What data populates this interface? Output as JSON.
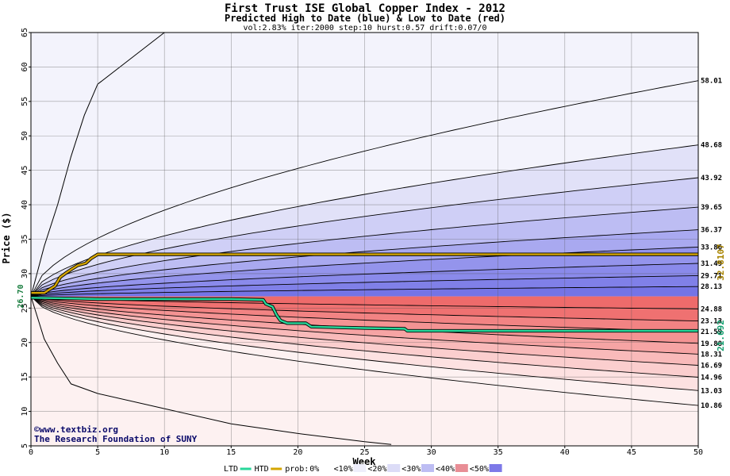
{
  "chart_data": {
    "type": "area",
    "title": "First Trust ISE Global Copper Index - 2012",
    "subtitle": "Predicted High to Date (blue) &  Low to Date (red)",
    "params": "vol:2.83% iter:2000 step:10 hurst:0.57 drift:0.07/0",
    "xlabel": "Week",
    "ylabel": "Price ($)",
    "xlim": [
      0,
      50
    ],
    "ylim": [
      5,
      65
    ],
    "xticks": [
      0,
      5,
      10,
      15,
      20,
      25,
      30,
      35,
      40,
      45,
      50
    ],
    "yticks": [
      5,
      10,
      15,
      20,
      25,
      30,
      35,
      40,
      45,
      50,
      55,
      60,
      65
    ],
    "grid": true,
    "start_price": 26.7,
    "start_label": "26.70",
    "high_band_levels": [
      28.13,
      29.71,
      31.49,
      33.86,
      36.37,
      39.65,
      43.92,
      48.68,
      58.01
    ],
    "low_band_levels": [
      24.88,
      23.13,
      21.59,
      19.88,
      18.31,
      16.69,
      14.96,
      13.03,
      10.86
    ],
    "right_labels": [
      "58.01",
      "48.68",
      "43.92",
      "39.65",
      "36.37",
      "33.86",
      "31.49",
      "29.71",
      "28.13",
      "24.88",
      "23.13",
      "21.59",
      "19.88",
      "18.31",
      "16.69",
      "14.96",
      "13.03",
      "10.86"
    ],
    "outer_high_curve": [
      [
        0,
        26.7
      ],
      [
        1,
        34
      ],
      [
        2,
        40
      ],
      [
        3,
        47
      ],
      [
        4,
        53
      ],
      [
        5,
        57.5
      ],
      [
        7,
        60.5
      ],
      [
        9,
        63.5
      ],
      [
        10,
        65
      ]
    ],
    "outer_low_curve": [
      [
        0,
        26.7
      ],
      [
        1,
        20.5
      ],
      [
        2,
        17
      ],
      [
        3,
        14
      ],
      [
        5,
        12.6
      ],
      [
        10,
        10.4
      ],
      [
        15,
        8.2
      ],
      [
        20,
        6.8
      ],
      [
        25,
        5.6
      ],
      [
        27,
        5.2
      ]
    ],
    "htd_series": {
      "name": "HTD",
      "color": "#d4a500",
      "points": [
        [
          0,
          27.2
        ],
        [
          1,
          27.2
        ],
        [
          1.3,
          27.6
        ],
        [
          1.8,
          28.2
        ],
        [
          2.2,
          29.5
        ],
        [
          2.7,
          30.2
        ],
        [
          3.1,
          30.7
        ],
        [
          3.5,
          31.2
        ],
        [
          4.1,
          31.5
        ],
        [
          4.5,
          32.2
        ],
        [
          5,
          32.8
        ],
        [
          10,
          32.8
        ],
        [
          20,
          32.8
        ],
        [
          30,
          32.8
        ],
        [
          40,
          32.8
        ],
        [
          50,
          32.8
        ]
      ],
      "end_label": "32.8107"
    },
    "ltd_series": {
      "name": "LTD",
      "color": "#28d79a",
      "points": [
        [
          0,
          26.5
        ],
        [
          3,
          26.4
        ],
        [
          5,
          26.3
        ],
        [
          10,
          26.3
        ],
        [
          15,
          26.3
        ],
        [
          17.4,
          26.2
        ],
        [
          17.6,
          25.6
        ],
        [
          18.1,
          25.2
        ],
        [
          18.4,
          24.0
        ],
        [
          18.7,
          23.2
        ],
        [
          19.2,
          22.8
        ],
        [
          20.6,
          22.8
        ],
        [
          21,
          22.3
        ],
        [
          25,
          22.1
        ],
        [
          28,
          22.0
        ],
        [
          28.2,
          21.7
        ],
        [
          35,
          21.7
        ],
        [
          40,
          21.7
        ],
        [
          50,
          21.7
        ]
      ],
      "end_label": "21.692"
    },
    "credits": [
      "©www.textbiz.org",
      "The Research Foundation of SUNY"
    ],
    "legend": {
      "line_items": [
        {
          "label": "LTD",
          "color": "#28d79a"
        },
        {
          "label": "HTD",
          "color": "#d4a500"
        }
      ],
      "prob_prefix": "prob:",
      "prob_items": [
        {
          "label": "0%",
          "fill": "#ffffff"
        },
        {
          "label": "<10%",
          "fill": "#eeeefb"
        },
        {
          "label": "<20%",
          "fill": "#dcdcf7"
        },
        {
          "label": "<30%",
          "fill": "#bdbdf3"
        },
        {
          "label": "<40%",
          "fill": "#e88d95"
        },
        {
          "label": "<50%",
          "fill": "#7d79e8"
        }
      ]
    },
    "band_colors": {
      "blue": [
        "#f3f3fc",
        "#e1e1f8",
        "#cfcff6",
        "#bdbdf3",
        "#a9a9f0",
        "#9494ec",
        "#8a8aeb",
        "#8080e8",
        "#7474e6"
      ],
      "red": [
        "#fdf1f1",
        "#fde1e1",
        "#fbcece",
        "#f9baba",
        "#f6a4a4",
        "#f49393",
        "#f28383",
        "#ef7171",
        "#ee6b6b"
      ]
    }
  }
}
